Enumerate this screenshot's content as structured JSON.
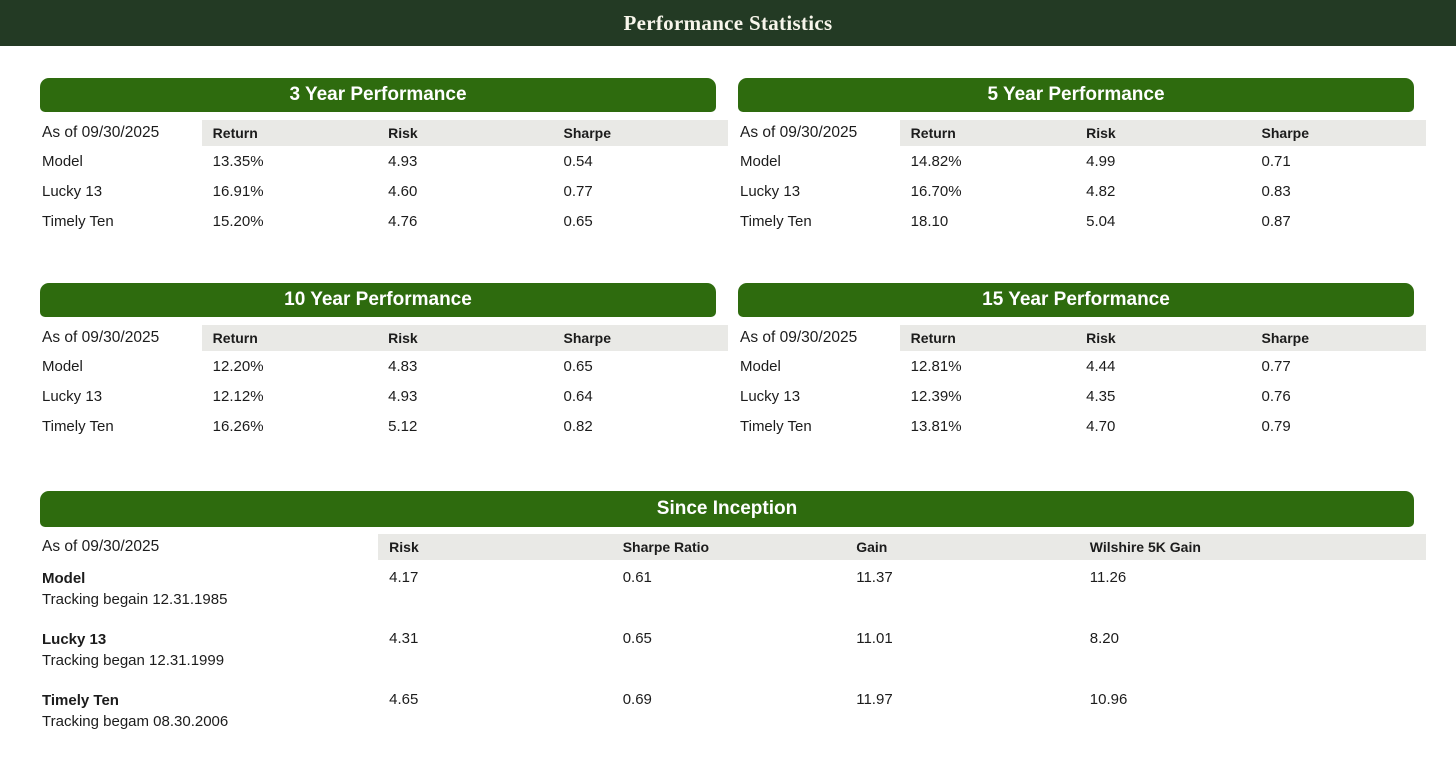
{
  "header": {
    "title": "Performance Statistics"
  },
  "colors": {
    "top_bar": "#233a24",
    "section_bar": "#2e6b0e",
    "column_header_bg": "#e9e9e6",
    "text": "#1c1c1c"
  },
  "sections": [
    {
      "title": "3 Year Performance",
      "as_of": "As of 09/30/2025",
      "columns": [
        "Return",
        "Risk",
        "Sharpe"
      ],
      "rows": [
        {
          "name": "Model",
          "values": [
            "13.35%",
            "4.93",
            "0.54"
          ]
        },
        {
          "name": "Lucky 13",
          "values": [
            "16.91%",
            "4.60",
            "0.77"
          ]
        },
        {
          "name": "Timely Ten",
          "values": [
            "15.20%",
            "4.76",
            "0.65"
          ]
        }
      ]
    },
    {
      "title": "5 Year Performance",
      "as_of": "As of 09/30/2025",
      "columns": [
        "Return",
        "Risk",
        "Sharpe"
      ],
      "rows": [
        {
          "name": "Model",
          "values": [
            "14.82%",
            "4.99",
            "0.71"
          ]
        },
        {
          "name": "Lucky 13",
          "values": [
            "16.70%",
            "4.82",
            "0.83"
          ]
        },
        {
          "name": "Timely Ten",
          "values": [
            "18.10",
            "5.04",
            "0.87"
          ]
        }
      ]
    },
    {
      "title": "10 Year Performance",
      "as_of": "As of 09/30/2025",
      "columns": [
        "Return",
        "Risk",
        "Sharpe"
      ],
      "rows": [
        {
          "name": "Model",
          "values": [
            "12.20%",
            "4.83",
            "0.65"
          ]
        },
        {
          "name": "Lucky 13",
          "values": [
            "12.12%",
            "4.93",
            "0.64"
          ]
        },
        {
          "name": "Timely Ten",
          "values": [
            "16.26%",
            "5.12",
            "0.82"
          ]
        }
      ]
    },
    {
      "title": "15 Year Performance",
      "as_of": "As of 09/30/2025",
      "columns": [
        "Return",
        "Risk",
        "Sharpe"
      ],
      "rows": [
        {
          "name": "Model",
          "values": [
            "12.81%",
            "4.44",
            "0.77"
          ]
        },
        {
          "name": "Lucky 13",
          "values": [
            "12.39%",
            "4.35",
            "0.76"
          ]
        },
        {
          "name": "Timely Ten",
          "values": [
            "13.81%",
            "4.70",
            "0.79"
          ]
        }
      ]
    }
  ],
  "inception": {
    "title": "Since Inception",
    "as_of": "As of 09/30/2025",
    "columns": [
      "Risk",
      "Sharpe Ratio",
      "Gain",
      "Wilshire 5K Gain"
    ],
    "rows": [
      {
        "name": "Model",
        "tracking": "Tracking begain 12.31.1985",
        "values": [
          "4.17",
          "0.61",
          "11.37",
          "11.26"
        ]
      },
      {
        "name": "Lucky 13",
        "tracking": "Tracking began 12.31.1999",
        "values": [
          "4.31",
          "0.65",
          "11.01",
          "8.20"
        ]
      },
      {
        "name": "Timely Ten",
        "tracking": "Tracking begam 08.30.2006",
        "values": [
          "4.65",
          "0.69",
          "11.97",
          "10.96"
        ]
      }
    ]
  }
}
